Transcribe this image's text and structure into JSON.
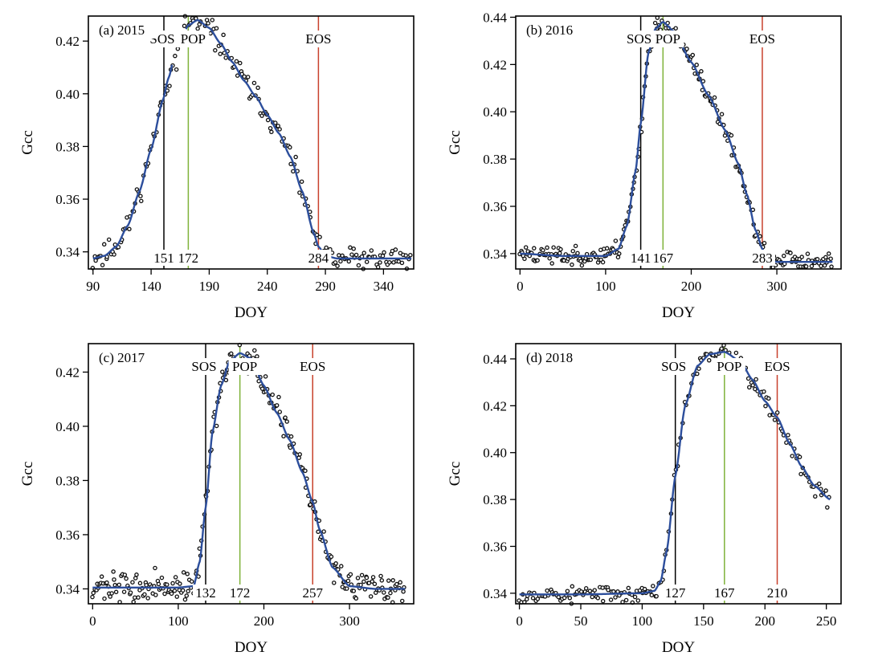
{
  "colors": {
    "fit": "#2c4e9c",
    "sos": "#000000",
    "pop": "#7fb23a",
    "eos": "#c8412c",
    "points": "#111111"
  },
  "chart_data": [
    {
      "type": "scatter",
      "panel": "(a) 2015",
      "xlabel": "DOY",
      "ylabel": "Gcc",
      "xlim": [
        86,
        366
      ],
      "ylim": [
        0.3335,
        0.4295
      ],
      "xticks": [
        90,
        140,
        190,
        240,
        290,
        340
      ],
      "yticks": [
        0.34,
        0.36,
        0.38,
        0.4,
        0.42
      ],
      "ytick_labels": [
        "0.34",
        "0.36",
        "0.38",
        "0.40",
        "0.42"
      ],
      "events": [
        {
          "name": "SOS",
          "doy": 151,
          "doy_label": "151"
        },
        {
          "name": "POP",
          "doy": 172,
          "doy_label": "172"
        },
        {
          "name": "EOS",
          "doy": 284,
          "doy_label": "284"
        }
      ],
      "fit": {
        "x": [
          90,
          100,
          110,
          120,
          130,
          140,
          150,
          155,
          160,
          172,
          180,
          190,
          200,
          210,
          220,
          230,
          240,
          250,
          260,
          270,
          280,
          284,
          290,
          300,
          320,
          340,
          364
        ],
        "y": [
          0.3375,
          0.3385,
          0.342,
          0.35,
          0.363,
          0.379,
          0.3975,
          0.406,
          0.414,
          0.426,
          0.428,
          0.425,
          0.419,
          0.412,
          0.405,
          0.399,
          0.392,
          0.385,
          0.376,
          0.363,
          0.347,
          0.342,
          0.3385,
          0.3375,
          0.3375,
          0.3375,
          0.3375
        ]
      },
      "fit_gap": [
        158,
        170
      ],
      "noise": 0.0035,
      "seed": 11
    },
    {
      "type": "scatter",
      "panel": "(b) 2016",
      "xlabel": "DOY",
      "ylabel": "Gcc",
      "xlim": [
        -5,
        375
      ],
      "ylim": [
        0.3335,
        0.4405
      ],
      "xticks": [
        0,
        100,
        200,
        300
      ],
      "yticks": [
        0.34,
        0.36,
        0.38,
        0.4,
        0.42,
        0.44
      ],
      "ytick_labels": [
        "0.34",
        "0.36",
        "0.38",
        "0.40",
        "0.42",
        "0.44"
      ],
      "events": [
        {
          "name": "SOS",
          "doy": 141,
          "doy_label": "141"
        },
        {
          "name": "POP",
          "doy": 167,
          "doy_label": "167"
        },
        {
          "name": "EOS",
          "doy": 283,
          "doy_label": "283"
        }
      ],
      "fit": {
        "x": [
          0,
          50,
          100,
          115,
          125,
          135,
          141,
          150,
          158,
          167,
          180,
          200,
          220,
          240,
          255,
          265,
          275,
          283,
          290,
          300,
          330,
          365
        ],
        "y": [
          0.34,
          0.339,
          0.339,
          0.342,
          0.352,
          0.375,
          0.395,
          0.425,
          0.435,
          0.438,
          0.434,
          0.421,
          0.407,
          0.392,
          0.378,
          0.365,
          0.35,
          0.342,
          0.337,
          0.3365,
          0.3365,
          0.3365
        ]
      },
      "noise": 0.003,
      "seed": 23
    },
    {
      "type": "scatter",
      "panel": "(c) 2017",
      "xlabel": "DOY",
      "ylabel": "Gcc",
      "xlim": [
        -5,
        375
      ],
      "ylim": [
        0.3345,
        0.4305
      ],
      "xticks": [
        0,
        100,
        200,
        300
      ],
      "yticks": [
        0.34,
        0.36,
        0.38,
        0.4,
        0.42
      ],
      "ytick_labels": [
        "0.34",
        "0.36",
        "0.38",
        "0.40",
        "0.42"
      ],
      "events": [
        {
          "name": "SOS",
          "doy": 132,
          "doy_label": "132"
        },
        {
          "name": "POP",
          "doy": 172,
          "doy_label": "172"
        },
        {
          "name": "EOS",
          "doy": 257,
          "doy_label": "257"
        }
      ],
      "fit": {
        "x": [
          0,
          50,
          100,
          118,
          125,
          132,
          140,
          150,
          160,
          172,
          185,
          200,
          215,
          230,
          245,
          257,
          265,
          280,
          300,
          330,
          365
        ],
        "y": [
          0.3405,
          0.3405,
          0.3405,
          0.341,
          0.35,
          0.37,
          0.398,
          0.415,
          0.424,
          0.427,
          0.425,
          0.415,
          0.405,
          0.395,
          0.383,
          0.372,
          0.362,
          0.348,
          0.341,
          0.34,
          0.34
        ]
      },
      "noise": 0.004,
      "seed": 37
    },
    {
      "type": "scatter",
      "panel": "(d) 2018",
      "xlabel": "DOY",
      "ylabel": "Gcc",
      "xlim": [
        -3,
        262
      ],
      "ylim": [
        0.3355,
        0.4465
      ],
      "xticks": [
        0,
        50,
        100,
        150,
        200,
        250
      ],
      "yticks": [
        0.34,
        0.36,
        0.38,
        0.4,
        0.42,
        0.44
      ],
      "ytick_labels": [
        "0.34",
        "0.36",
        "0.38",
        "0.40",
        "0.42",
        "0.44"
      ],
      "events": [
        {
          "name": "SOS",
          "doy": 127,
          "doy_label": "127"
        },
        {
          "name": "POP",
          "doy": 167,
          "doy_label": "167"
        },
        {
          "name": "EOS",
          "doy": 210,
          "doy_label": "210"
        }
      ],
      "fit": {
        "x": [
          0,
          50,
          100,
          110,
          115,
          120,
          127,
          135,
          145,
          155,
          167,
          180,
          190,
          200,
          210,
          220,
          230,
          240,
          253
        ],
        "y": [
          0.3395,
          0.3395,
          0.34,
          0.341,
          0.345,
          0.358,
          0.39,
          0.42,
          0.437,
          0.442,
          0.443,
          0.439,
          0.431,
          0.422,
          0.415,
          0.404,
          0.394,
          0.386,
          0.38
        ]
      },
      "noise": 0.003,
      "seed": 53
    }
  ]
}
